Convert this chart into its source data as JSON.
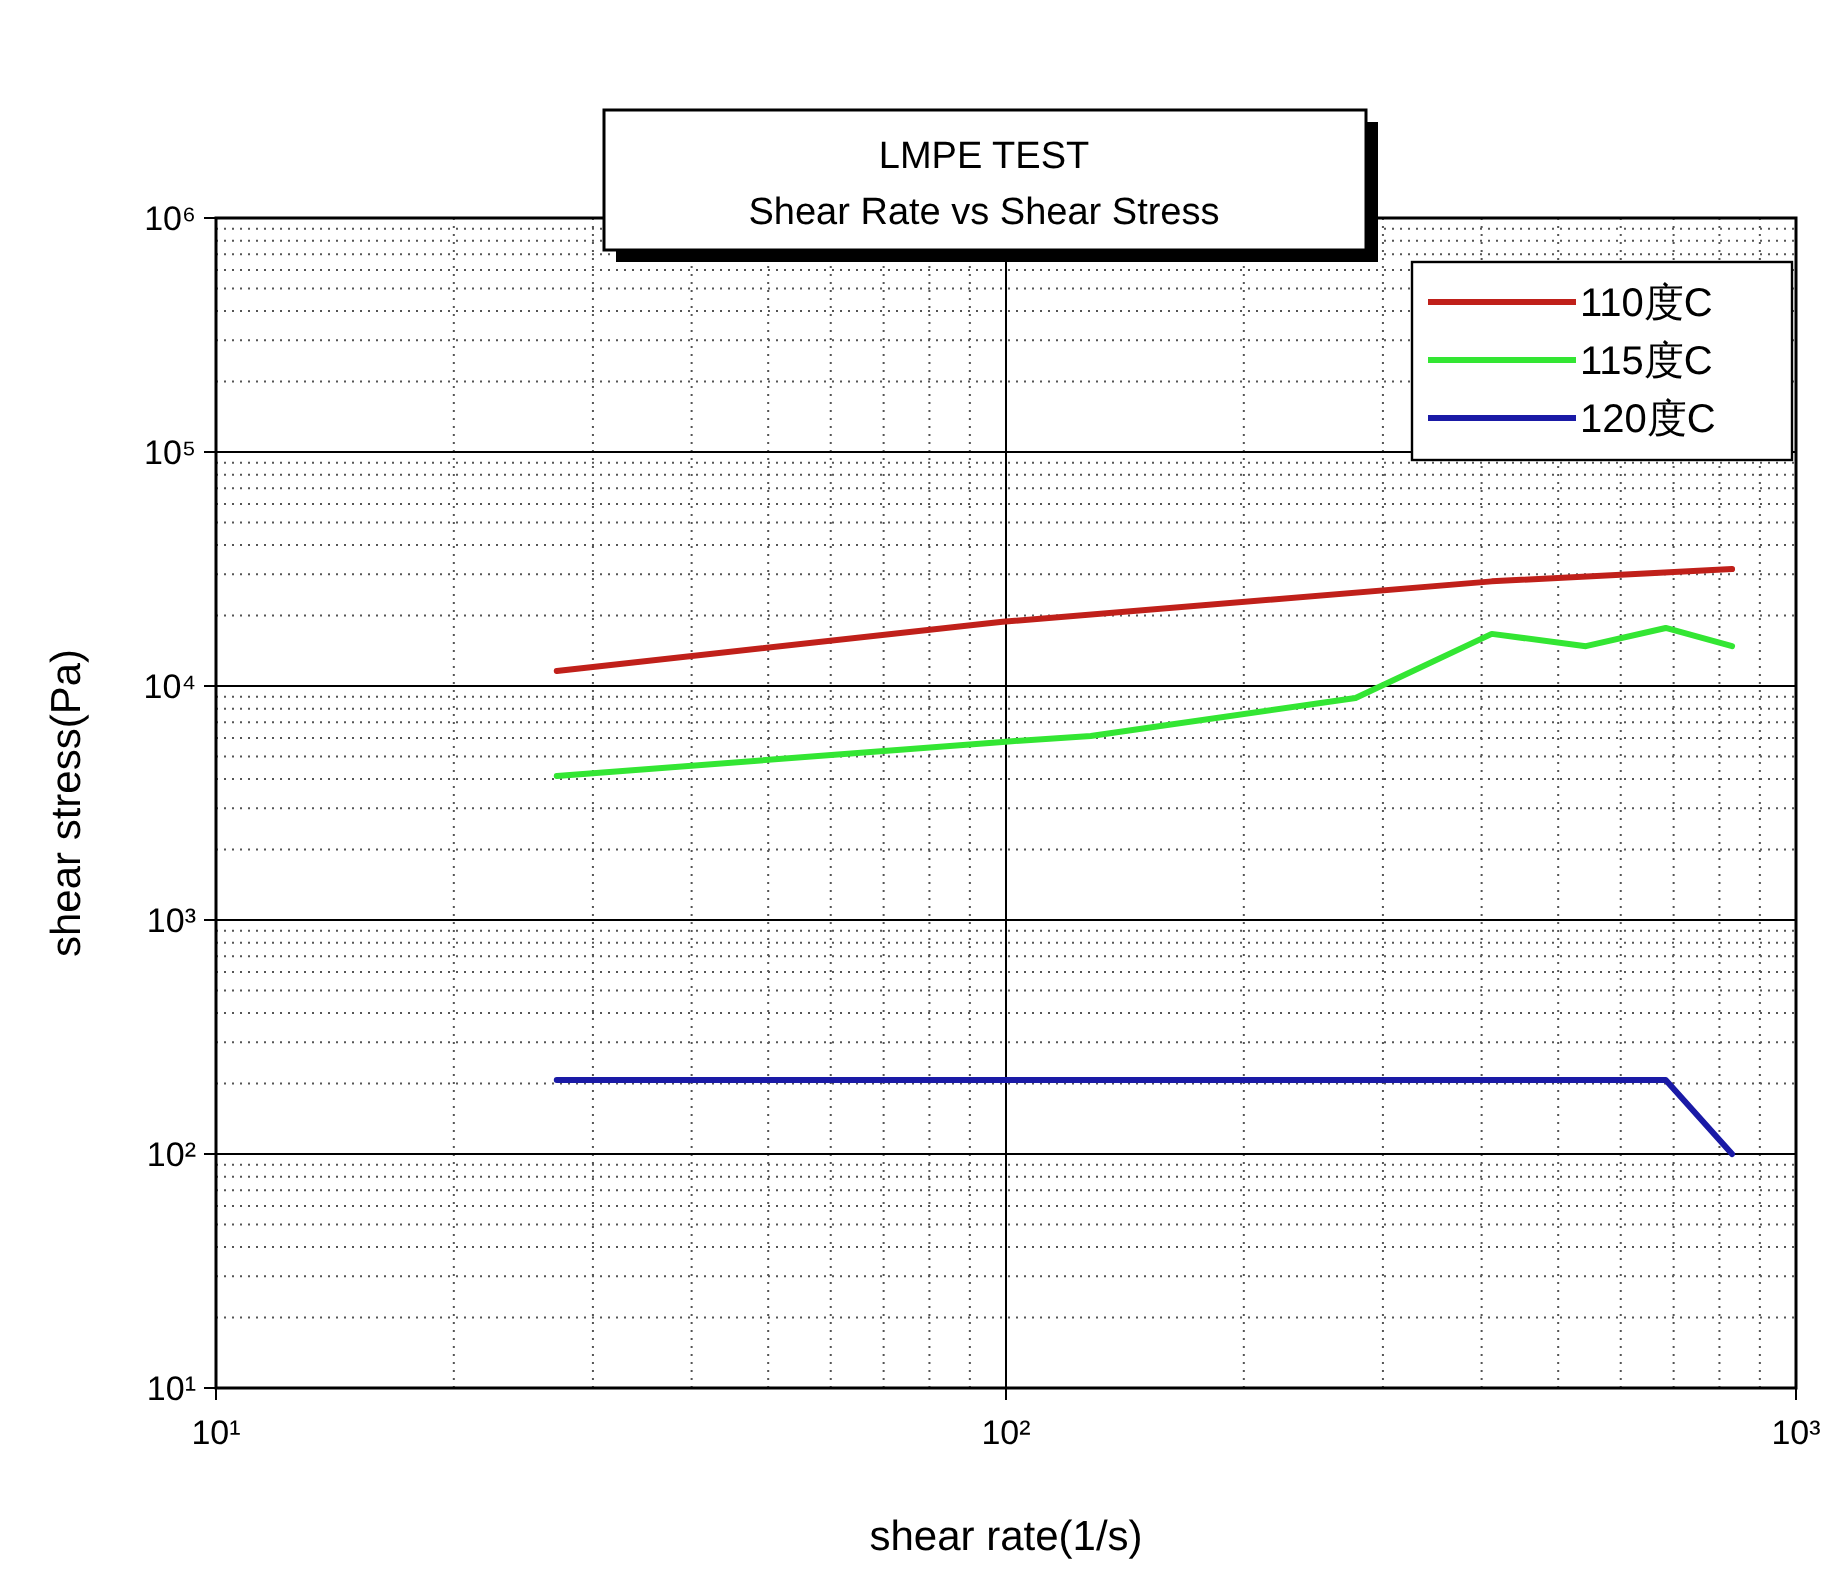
{
  "chart_data": {
    "type": "line",
    "title": "LMPE TEST",
    "subtitle": "Shear Rate vs Shear Stress",
    "xlabel": "shear rate(1/s)",
    "ylabel": "shear stress(Pa)",
    "log": "xy",
    "grid": true,
    "legend": "top right",
    "marker": "none",
    "line_style": "solid",
    "xlim": [
      10,
      1000
    ],
    "xticks": [
      {
        "value": 10,
        "label": "10¹"
      },
      {
        "value": 100,
        "label": "10²"
      },
      {
        "value": 1000,
        "label": "10³"
      }
    ],
    "ylim": [
      10,
      1000000
    ],
    "yticks": [
      {
        "value": 10,
        "label": "10¹"
      },
      {
        "value": 100,
        "label": "10²"
      },
      {
        "value": 1000,
        "label": "10³"
      },
      {
        "value": 10000,
        "label": "10⁴"
      },
      {
        "value": 100000,
        "label": "10⁵"
      },
      {
        "value": 1000000,
        "label": "10⁶"
      }
    ],
    "series": [
      {
        "name": "110度C",
        "color": "#c0201a",
        "x": [
          27,
          99,
          412,
          830
        ],
        "values": [
          11600,
          18800,
          28000,
          31600
        ]
      },
      {
        "name": "115度C",
        "color": "#33e633",
        "x": [
          27,
          99,
          128,
          277,
          412,
          542,
          684,
          830
        ],
        "values": [
          4120,
          5770,
          6110,
          8890,
          16700,
          14800,
          17700,
          14800
        ]
      },
      {
        "name": "120度C",
        "color": "#1a1aa6",
        "x": [
          27,
          684,
          830
        ],
        "values": [
          207,
          207,
          100
        ]
      }
    ]
  }
}
